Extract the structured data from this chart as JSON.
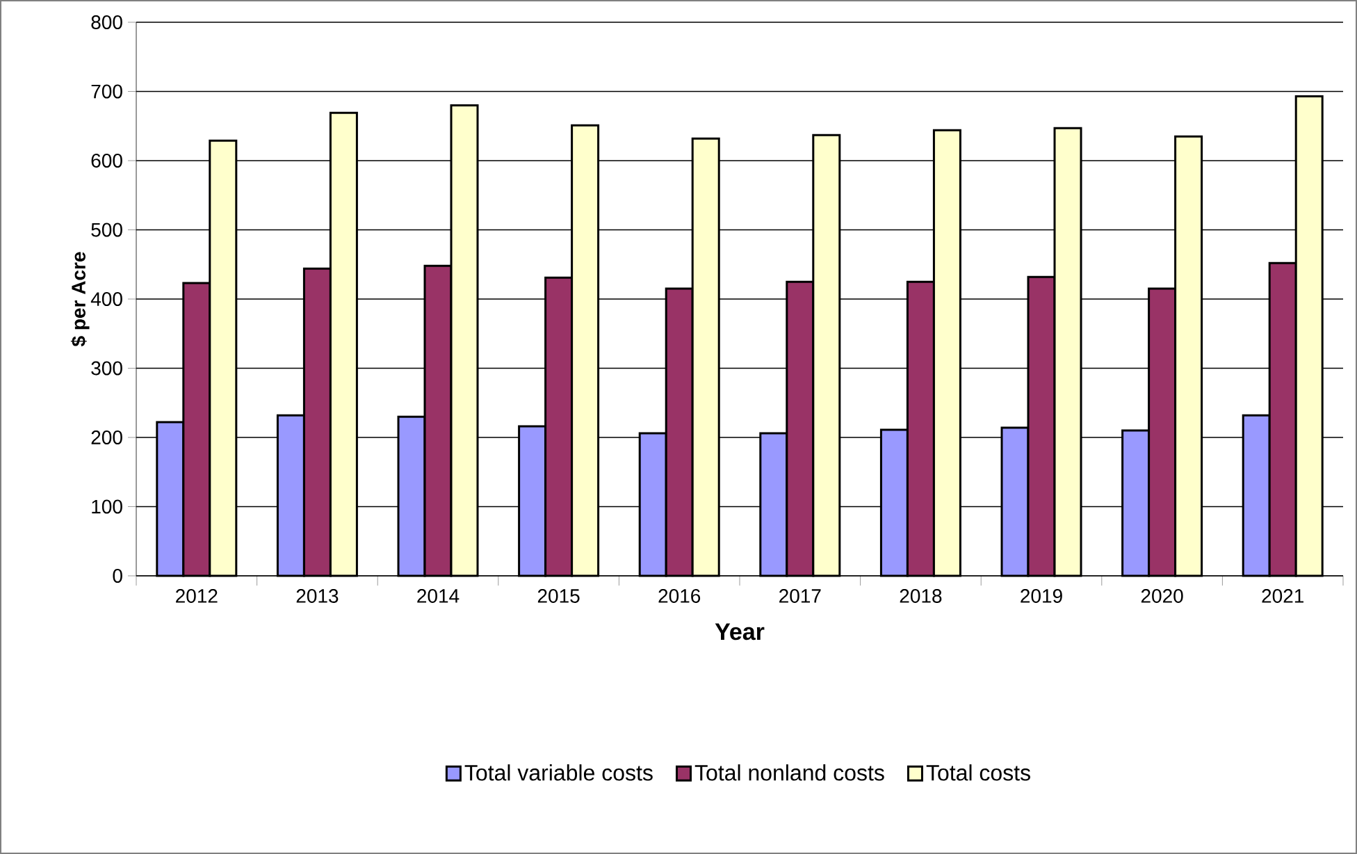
{
  "chart_data": {
    "type": "bar",
    "xlabel": "Year",
    "ylabel": "$ per Acre",
    "categories": [
      "2012",
      "2013",
      "2014",
      "2015",
      "2016",
      "2017",
      "2018",
      "2019",
      "2020",
      "2021"
    ],
    "series": [
      {
        "name": "Total variable costs",
        "color": "#9999ff",
        "values": [
          222,
          232,
          230,
          216,
          206,
          206,
          211,
          214,
          210,
          232
        ]
      },
      {
        "name": "Total nonland costs",
        "color": "#993366",
        "values": [
          423,
          444,
          448,
          431,
          415,
          425,
          425,
          432,
          415,
          452
        ]
      },
      {
        "name": "Total costs",
        "color": "#ffffcc",
        "values": [
          629,
          669,
          680,
          651,
          632,
          637,
          644,
          647,
          635,
          693
        ]
      }
    ],
    "ylim": [
      0,
      800
    ],
    "yticks": [
      0,
      100,
      200,
      300,
      400,
      500,
      600,
      700,
      800
    ],
    "grid": "y",
    "legend": "bottom"
  }
}
